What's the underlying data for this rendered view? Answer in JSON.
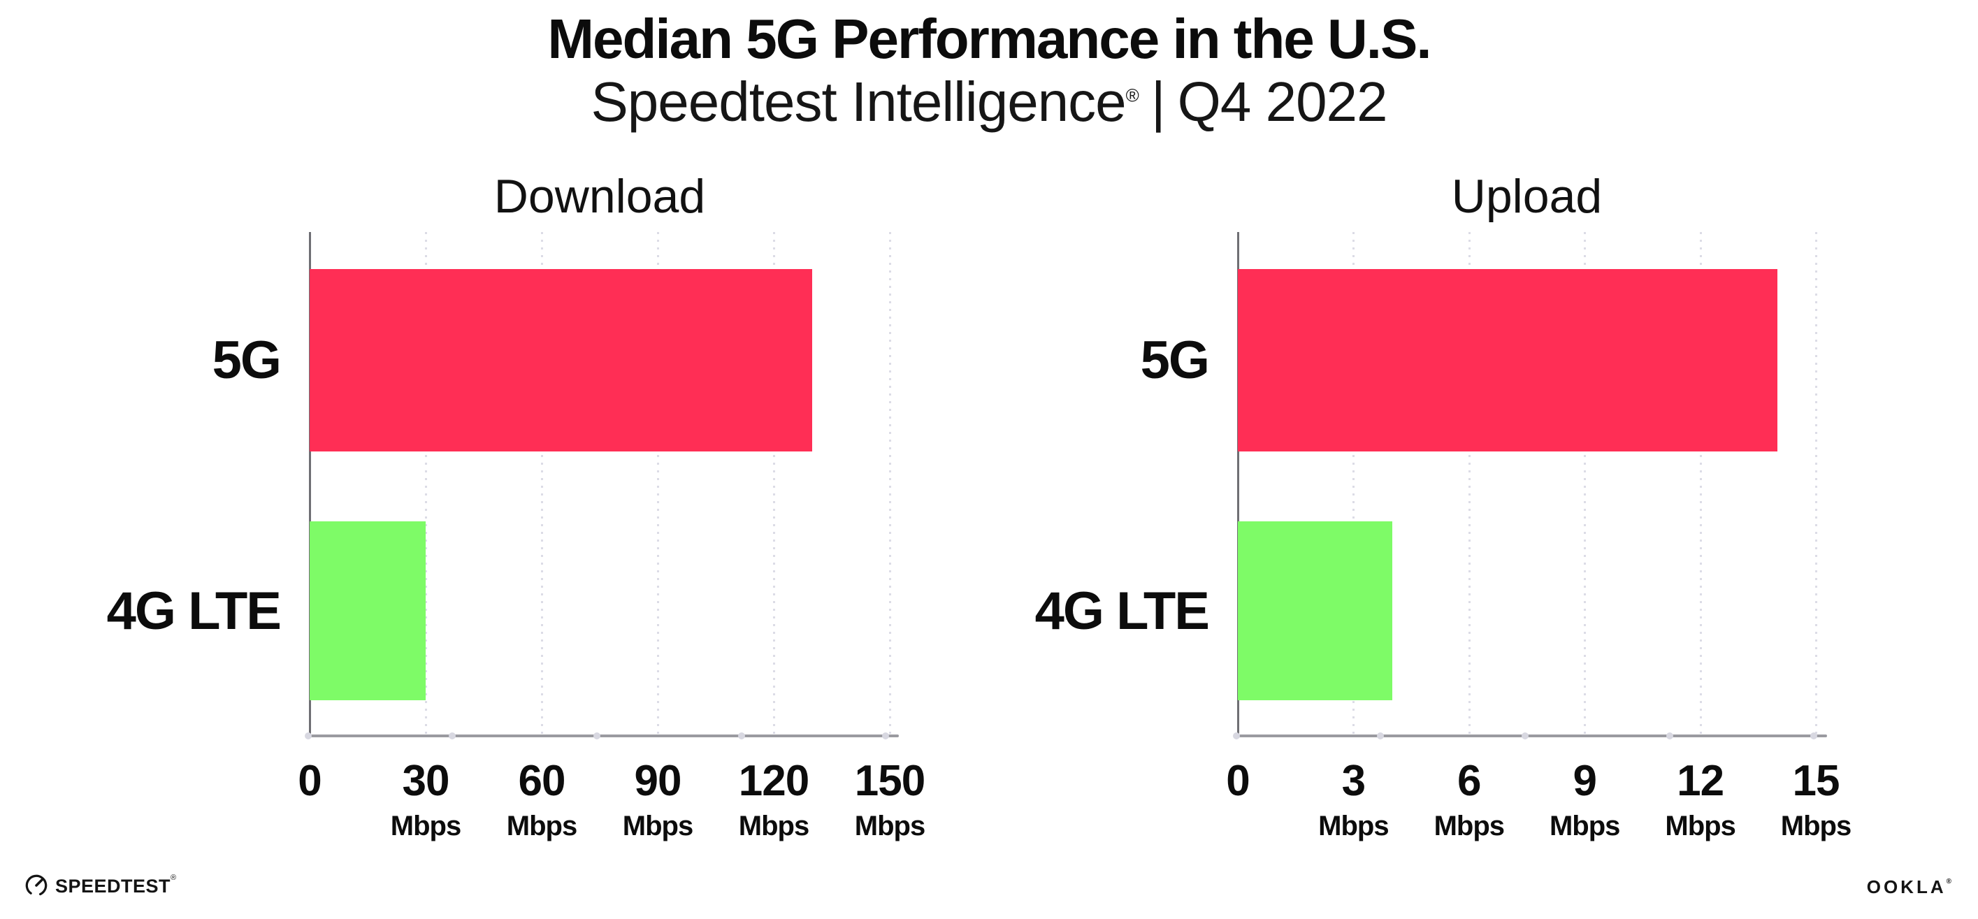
{
  "header": {
    "title": "Median 5G Performance in the U.S.",
    "subtitle_brand": "Speedtest Intelligence",
    "subtitle_reg": "®",
    "subtitle_sep": "|",
    "subtitle_period": "Q4 2022"
  },
  "colors": {
    "bar_5g": "#FF2E55",
    "bar_4g_lte": "#7EFB67",
    "axis_line": "#9a9aa0",
    "y_axis_line": "#6f6f74",
    "grid_dot": "#dcdce6",
    "text": "#0f0f0f"
  },
  "chart_data": [
    {
      "type": "bar",
      "orientation": "horizontal",
      "title": "Download",
      "categories": [
        "5G",
        "4G LTE"
      ],
      "values": [
        130,
        30
      ],
      "unit": "Mbps",
      "xlim": [
        0,
        150
      ],
      "xticks": [
        0,
        30,
        60,
        90,
        120,
        150
      ],
      "xtick_labels": [
        "0",
        "30",
        "60",
        "90",
        "120",
        "150"
      ],
      "tick_unit_label": "Mbps",
      "bar_colors": [
        "#FF2E55",
        "#7EFB67"
      ],
      "grid": "dotted-vertical",
      "legend": "none"
    },
    {
      "type": "bar",
      "orientation": "horizontal",
      "title": "Upload",
      "categories": [
        "5G",
        "4G LTE"
      ],
      "values": [
        14,
        4
      ],
      "unit": "Mbps",
      "xlim": [
        0,
        15
      ],
      "xticks": [
        0,
        3,
        6,
        9,
        12,
        15
      ],
      "xtick_labels": [
        "0",
        "3",
        "6",
        "9",
        "12",
        "15"
      ],
      "tick_unit_label": "Mbps",
      "bar_colors": [
        "#FF2E55",
        "#7EFB67"
      ],
      "grid": "dotted-vertical",
      "legend": "none"
    }
  ],
  "footer": {
    "speedtest_logo_text": "SPEEDTEST",
    "speedtest_mark": "®",
    "ookla_logo_text": "OOKLA",
    "ookla_mark": "®"
  }
}
